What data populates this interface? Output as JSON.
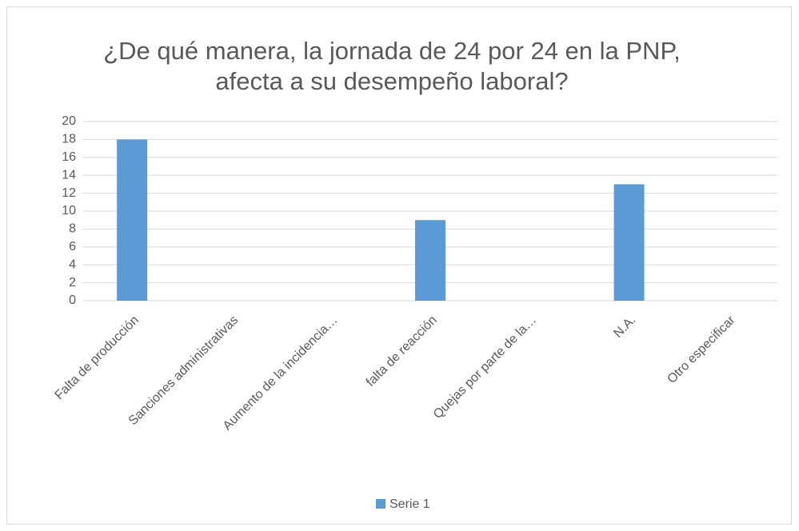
{
  "chart_data": {
    "type": "bar",
    "title": [
      "¿De qué manera, la jornada de 24 por 24 en la PNP,",
      "afecta a su desempeño laboral?"
    ],
    "categories": [
      "Falta de producción",
      "Sanciones administrativas",
      "Aumento de la incidencia…",
      "falta de reacción",
      "Quejas por parte de la…",
      "N.A.",
      "Otro especificar"
    ],
    "series": [
      {
        "name": "Serie 1",
        "color": "#5b9bd5",
        "values": [
          18,
          0,
          0,
          9,
          0,
          13,
          0
        ]
      }
    ],
    "ylim": [
      0,
      20
    ],
    "yticks": [
      0,
      2,
      4,
      6,
      8,
      10,
      12,
      14,
      16,
      18,
      20
    ],
    "grid": true,
    "legend": "bottom"
  }
}
